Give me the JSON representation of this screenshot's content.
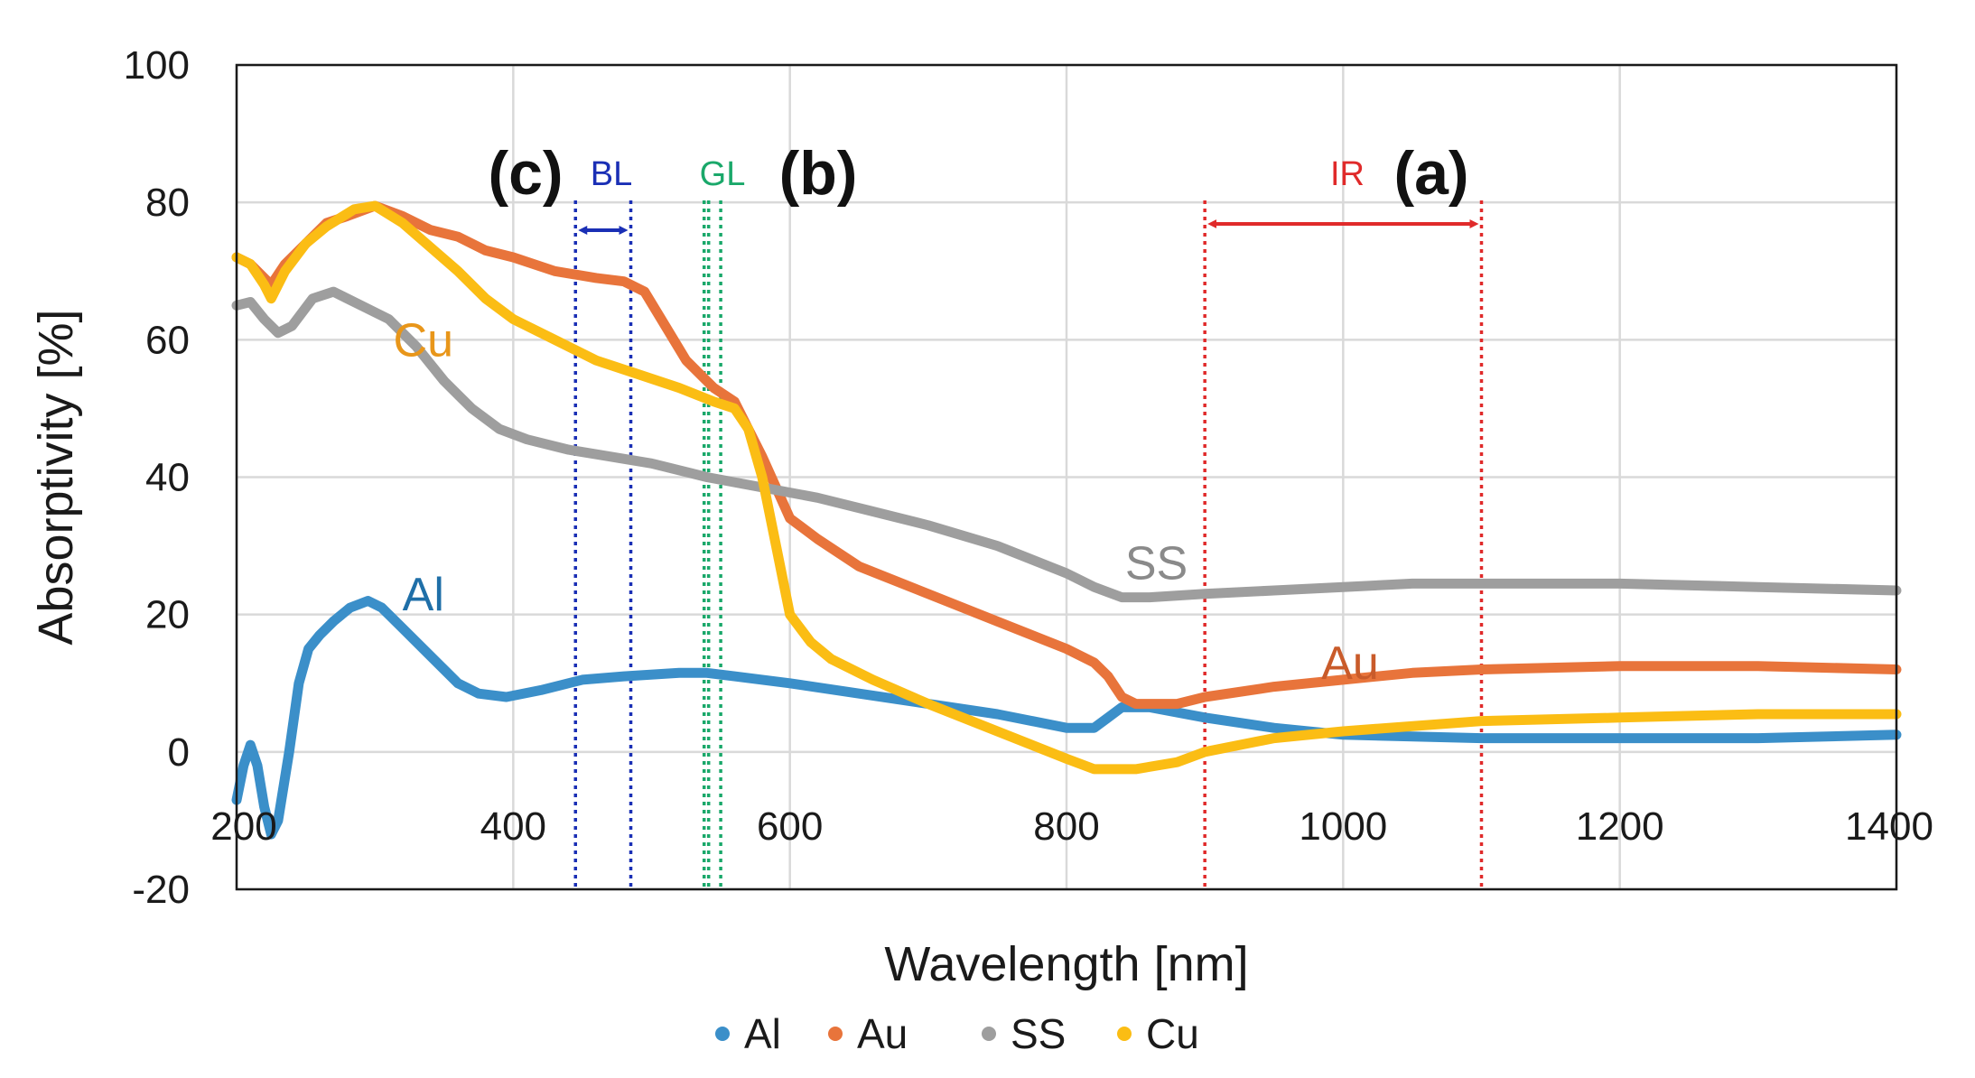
{
  "chart_data": {
    "type": "line",
    "xlabel": "Wavelength [nm]",
    "ylabel": "Absorptivity [%]",
    "xlim": [
      200,
      1400
    ],
    "ylim": [
      -20,
      100
    ],
    "x_ticks": [
      "200",
      "400",
      "600",
      "800",
      "1000",
      "1200",
      "1400"
    ],
    "y_ticks": [
      "-20",
      "0",
      "20",
      "40",
      "60",
      "80",
      "100"
    ],
    "grid": true,
    "legend_position": "bottom",
    "series": [
      {
        "name": "Al",
        "color": "#3b8fc9",
        "points": [
          [
            200,
            -7
          ],
          [
            205,
            -2
          ],
          [
            210,
            1
          ],
          [
            215,
            -2
          ],
          [
            220,
            -8
          ],
          [
            225,
            -12
          ],
          [
            230,
            -10
          ],
          [
            238,
            0
          ],
          [
            245,
            10
          ],
          [
            252,
            15
          ],
          [
            260,
            17
          ],
          [
            270,
            19
          ],
          [
            282,
            21
          ],
          [
            295,
            22
          ],
          [
            305,
            21
          ],
          [
            320,
            18
          ],
          [
            340,
            14
          ],
          [
            360,
            10
          ],
          [
            375,
            8.5
          ],
          [
            395,
            8
          ],
          [
            420,
            9
          ],
          [
            450,
            10.5
          ],
          [
            480,
            11
          ],
          [
            520,
            11.5
          ],
          [
            540,
            11.5
          ],
          [
            560,
            11
          ],
          [
            600,
            10
          ],
          [
            650,
            8.5
          ],
          [
            700,
            7
          ],
          [
            750,
            5.5
          ],
          [
            800,
            3.5
          ],
          [
            820,
            3.5
          ],
          [
            830,
            5
          ],
          [
            840,
            6.5
          ],
          [
            860,
            6.5
          ],
          [
            900,
            5
          ],
          [
            950,
            3.5
          ],
          [
            1000,
            2.5
          ],
          [
            1100,
            2
          ],
          [
            1200,
            2
          ],
          [
            1300,
            2
          ],
          [
            1400,
            2.5
          ]
        ]
      },
      {
        "name": "Au",
        "color": "#e8743b",
        "points": [
          [
            200,
            72
          ],
          [
            210,
            71
          ],
          [
            220,
            69
          ],
          [
            225,
            68
          ],
          [
            235,
            71
          ],
          [
            250,
            74
          ],
          [
            265,
            77
          ],
          [
            280,
            78
          ],
          [
            300,
            79.5
          ],
          [
            320,
            78
          ],
          [
            340,
            76
          ],
          [
            360,
            75
          ],
          [
            380,
            73
          ],
          [
            400,
            72
          ],
          [
            430,
            70
          ],
          [
            460,
            69
          ],
          [
            480,
            68.5
          ],
          [
            495,
            67
          ],
          [
            510,
            62
          ],
          [
            525,
            57
          ],
          [
            545,
            53
          ],
          [
            560,
            51
          ],
          [
            580,
            43
          ],
          [
            600,
            34
          ],
          [
            620,
            31
          ],
          [
            650,
            27
          ],
          [
            700,
            23
          ],
          [
            750,
            19
          ],
          [
            800,
            15
          ],
          [
            820,
            13
          ],
          [
            830,
            11
          ],
          [
            840,
            8
          ],
          [
            850,
            7
          ],
          [
            880,
            7
          ],
          [
            900,
            8
          ],
          [
            950,
            9.5
          ],
          [
            1000,
            10.5
          ],
          [
            1050,
            11.5
          ],
          [
            1100,
            12
          ],
          [
            1200,
            12.5
          ],
          [
            1300,
            12.5
          ],
          [
            1400,
            12
          ]
        ]
      },
      {
        "name": "SS",
        "color": "#9e9e9e",
        "points": [
          [
            200,
            65
          ],
          [
            210,
            65.5
          ],
          [
            220,
            63
          ],
          [
            230,
            61
          ],
          [
            240,
            62
          ],
          [
            255,
            66
          ],
          [
            270,
            67
          ],
          [
            290,
            65
          ],
          [
            310,
            63
          ],
          [
            330,
            59
          ],
          [
            350,
            54
          ],
          [
            370,
            50
          ],
          [
            390,
            47
          ],
          [
            410,
            45.5
          ],
          [
            440,
            44
          ],
          [
            470,
            43
          ],
          [
            500,
            42
          ],
          [
            540,
            40
          ],
          [
            580,
            38.5
          ],
          [
            620,
            37
          ],
          [
            660,
            35
          ],
          [
            700,
            33
          ],
          [
            750,
            30
          ],
          [
            800,
            26
          ],
          [
            820,
            24
          ],
          [
            840,
            22.5
          ],
          [
            860,
            22.5
          ],
          [
            900,
            23
          ],
          [
            950,
            23.5
          ],
          [
            1000,
            24
          ],
          [
            1050,
            24.5
          ],
          [
            1100,
            24.5
          ],
          [
            1200,
            24.5
          ],
          [
            1300,
            24
          ],
          [
            1400,
            23.5
          ]
        ]
      },
      {
        "name": "Cu",
        "color": "#fbbd14",
        "points": [
          [
            200,
            72
          ],
          [
            210,
            71
          ],
          [
            220,
            68
          ],
          [
            225,
            66
          ],
          [
            235,
            70
          ],
          [
            250,
            74
          ],
          [
            265,
            76.5
          ],
          [
            285,
            79
          ],
          [
            300,
            79.5
          ],
          [
            320,
            77
          ],
          [
            340,
            73.5
          ],
          [
            360,
            70
          ],
          [
            380,
            66
          ],
          [
            400,
            63
          ],
          [
            430,
            60
          ],
          [
            460,
            57
          ],
          [
            490,
            55
          ],
          [
            520,
            53
          ],
          [
            545,
            51
          ],
          [
            560,
            50
          ],
          [
            570,
            47
          ],
          [
            580,
            40
          ],
          [
            590,
            30
          ],
          [
            600,
            20
          ],
          [
            615,
            16
          ],
          [
            630,
            13.5
          ],
          [
            660,
            10.5
          ],
          [
            700,
            7
          ],
          [
            750,
            3
          ],
          [
            800,
            -1
          ],
          [
            820,
            -2.5
          ],
          [
            850,
            -2.5
          ],
          [
            880,
            -1.5
          ],
          [
            900,
            0
          ],
          [
            950,
            2
          ],
          [
            1000,
            3
          ],
          [
            1100,
            4.5
          ],
          [
            1200,
            5
          ],
          [
            1300,
            5.5
          ],
          [
            1400,
            5.5
          ]
        ]
      }
    ],
    "series_labels": [
      {
        "text": "Al",
        "color": "#1f6fa8",
        "x": 335,
        "y": 23
      },
      {
        "text": "Au",
        "color": "#c95b2a",
        "x": 1005,
        "y": 13
      },
      {
        "text": "SS",
        "color": "#8a8a8a",
        "x": 865,
        "y": 27.5
      },
      {
        "text": "Cu",
        "color": "#e8961a",
        "x": 335,
        "y": 60
      }
    ],
    "annotations": [
      {
        "letter": "(c)",
        "name": "BL",
        "name_color": "#1a2fb5",
        "line_color": "#1a2fb5",
        "x1": 445,
        "x2": 485
      },
      {
        "letter": "(b)",
        "name": "GL",
        "name_color": "#1aa86a",
        "line_color": "#1aa86a",
        "x1": 538,
        "x2": 550
      },
      {
        "letter": "(a)",
        "name": "IR",
        "name_color": "#e02a2a",
        "line_color": "#e02a2a",
        "x1": 900,
        "x2": 1100
      }
    ]
  }
}
